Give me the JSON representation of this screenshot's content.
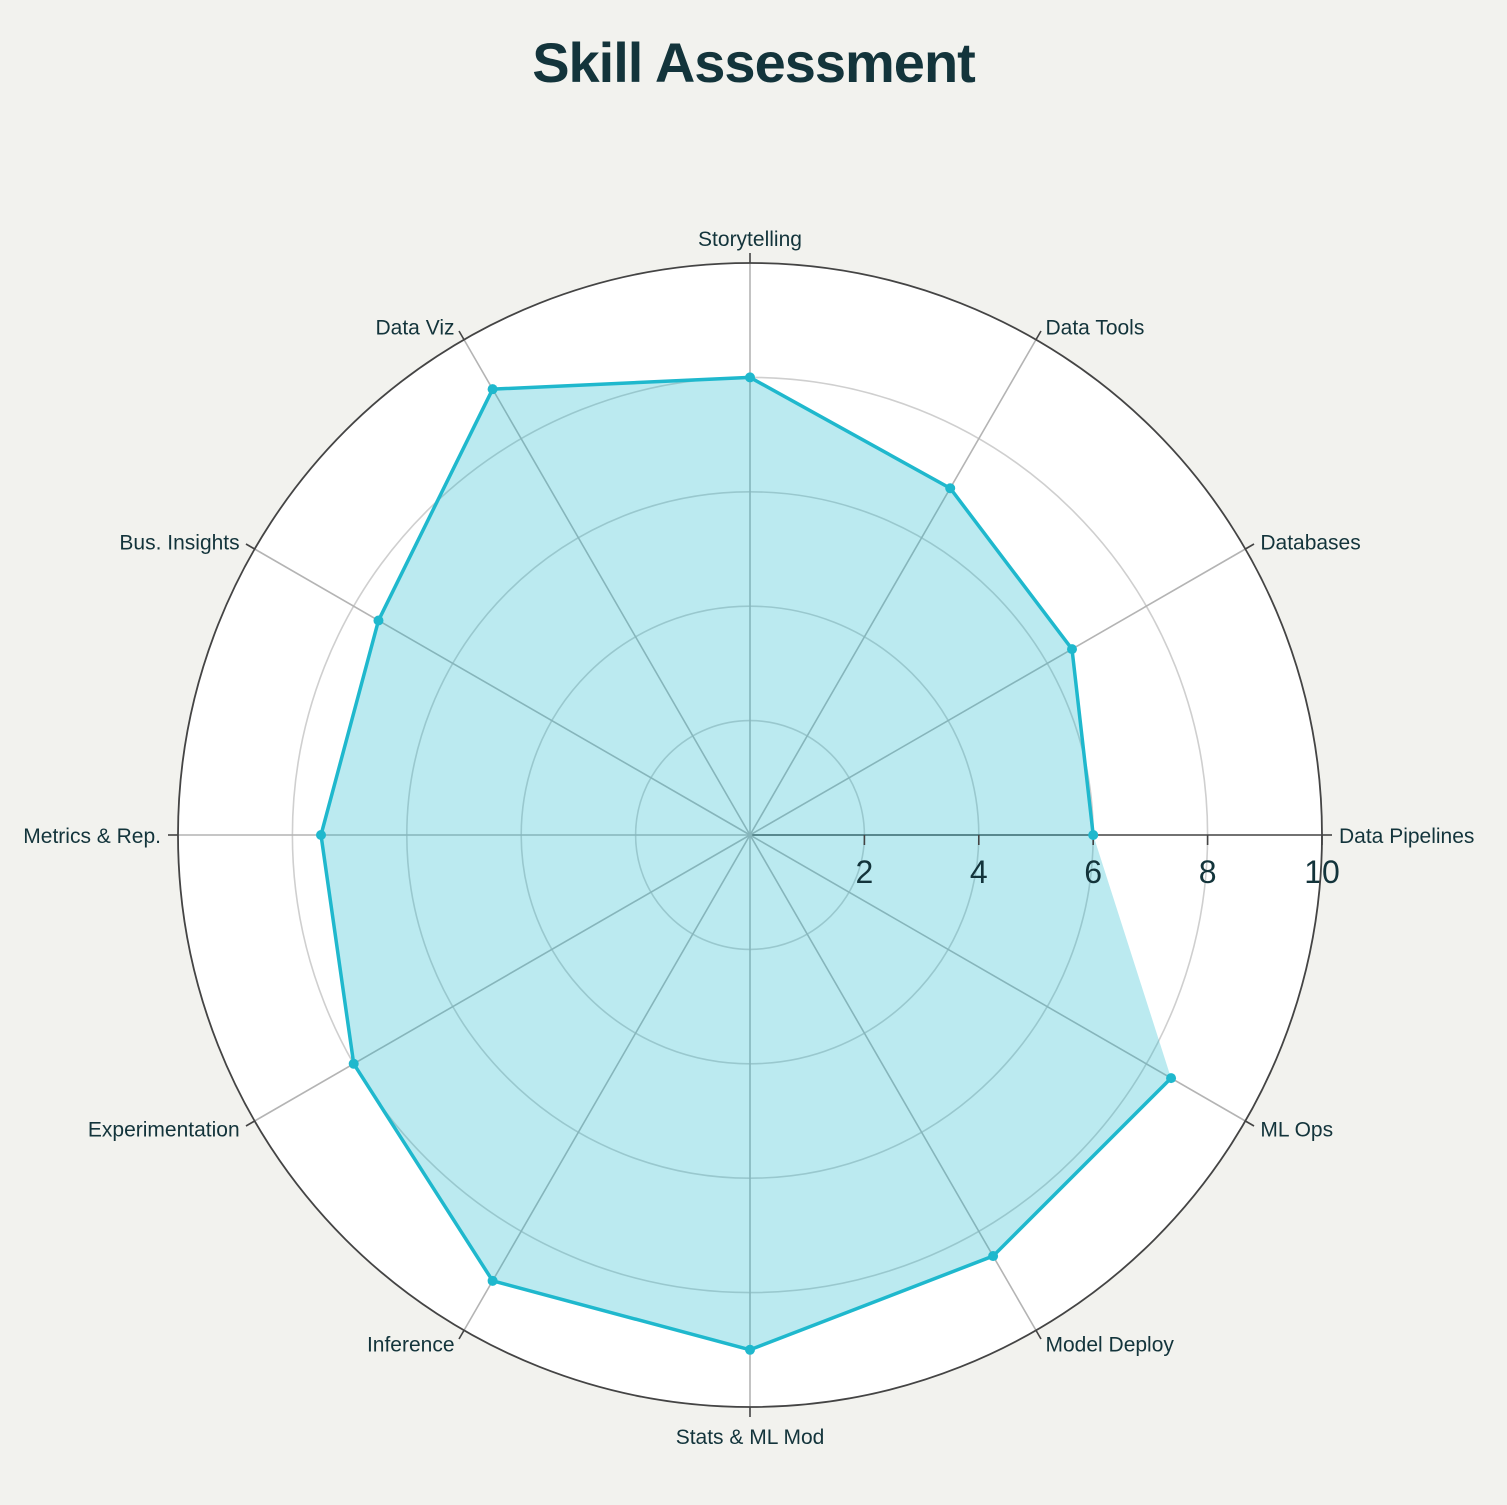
{
  "chart_data": {
    "type": "radar",
    "title": "Skill Assessment",
    "categories": [
      "Data Pipelines",
      "Databases",
      "Data Tools",
      "Storytelling",
      "Data Viz",
      "Bus. Insights",
      "Metrics & Rep.",
      "Experimentation",
      "Inference",
      "Stats & ML Mod",
      "Model Deploy",
      "ML Ops"
    ],
    "series": [
      {
        "values": [
          6,
          6.5,
          7,
          8,
          9,
          7.5,
          7.5,
          8,
          9,
          9,
          8.5,
          8.5
        ],
        "color": "#1fb8cd"
      }
    ],
    "rlim": [
      0,
      10
    ],
    "rticks": [
      "2",
      "4",
      "6",
      "8",
      "10"
    ],
    "grid": true,
    "legend": "none"
  },
  "colors": {
    "series": "#1fb8cd",
    "fill": "#bce9ef",
    "background": "#f2f2ee",
    "plot_background": "#ffffff",
    "text": "#13343b"
  }
}
